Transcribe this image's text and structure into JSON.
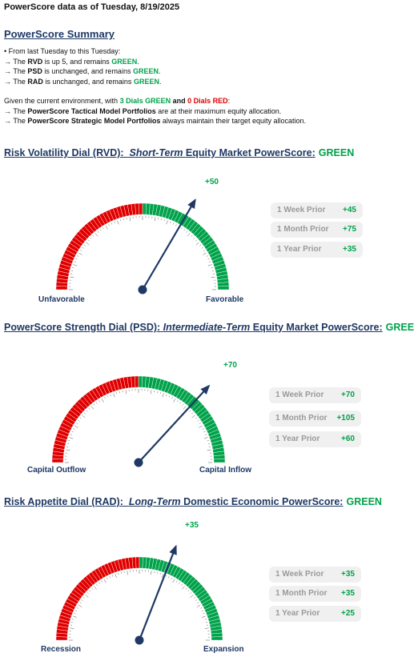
{
  "header": {
    "title": "PowerScore data as of Tuesday, 8/19/2025"
  },
  "summary": {
    "title": "PowerScore Summary",
    "intro": "• From last Tuesday to this Tuesday:",
    "lines": [
      {
        "pre": "→ The ",
        "name": "RVD",
        "mid": " is up 5, and remains ",
        "status": "GREEN",
        "post": "."
      },
      {
        "pre": "→ The ",
        "name": "PSD",
        "mid": " is unchanged, and remains ",
        "status": "GREEN",
        "post": "."
      },
      {
        "pre": "→ The ",
        "name": "RAD",
        "mid": " is unchanged, and remains ",
        "status": "GREEN",
        "post": "."
      }
    ],
    "env": {
      "pre": "Given the current environment, with ",
      "green": "3 Dials GREEN",
      "and": " and ",
      "red": "0 Dials RED",
      "post": ":"
    },
    "portfolios": [
      {
        "pre": "→ The ",
        "name": "PowerScore Tactical Model Portfolios",
        "post": " are at their maximum equity allocation."
      },
      {
        "pre": "→ The ",
        "name": "PowerScore Strategic Model Portfolios",
        "post": " always maintain their target equity allocation."
      }
    ]
  },
  "dials": [
    {
      "head_pre": "Risk Volatility Dial (RVD):",
      "head_term": "Short-Term",
      "head_post": "Equity Market PowerScore:",
      "status": "GREEN",
      "needle_label": "+50",
      "needle_value": 50,
      "left_label": "Unfavorable",
      "right_label": "Favorable",
      "history": [
        {
          "label": "1 Week Prior",
          "value": "+45"
        },
        {
          "label": "1 Month Prior",
          "value": "+75"
        },
        {
          "label": "1 Year Prior",
          "value": "+35"
        }
      ]
    },
    {
      "head_pre": "PowerScore Strength Dial (PSD):",
      "head_term": "Intermediate-Term",
      "head_post": "Equity Market PowerScore:",
      "status": "GREEN",
      "needle_label": "+70",
      "needle_value": 70,
      "left_label": "Capital Outflow",
      "right_label": "Capital Inflow",
      "history": [
        {
          "label": "1 Week Prior",
          "value": "+70"
        },
        {
          "label": "1 Month Prior",
          "value": "+105"
        },
        {
          "label": "1 Year Prior",
          "value": "+60"
        }
      ]
    },
    {
      "head_pre": "Risk Appetite Dial (RAD):",
      "head_term": "Long-Term",
      "head_post": "Domestic Economic PowerScore:",
      "status": "GREEN",
      "needle_label": "+35",
      "needle_value": 35,
      "left_label": "Recession",
      "right_label": "Expansion",
      "history": [
        {
          "label": "1 Week Prior",
          "value": "+35"
        },
        {
          "label": "1 Month Prior",
          "value": "+35"
        },
        {
          "label": "1 Year Prior",
          "value": "+25"
        }
      ]
    }
  ],
  "colors": {
    "navy": "#1f3864",
    "green": "#00a24a",
    "red": "#e00000",
    "needle": "#1f3864"
  }
}
